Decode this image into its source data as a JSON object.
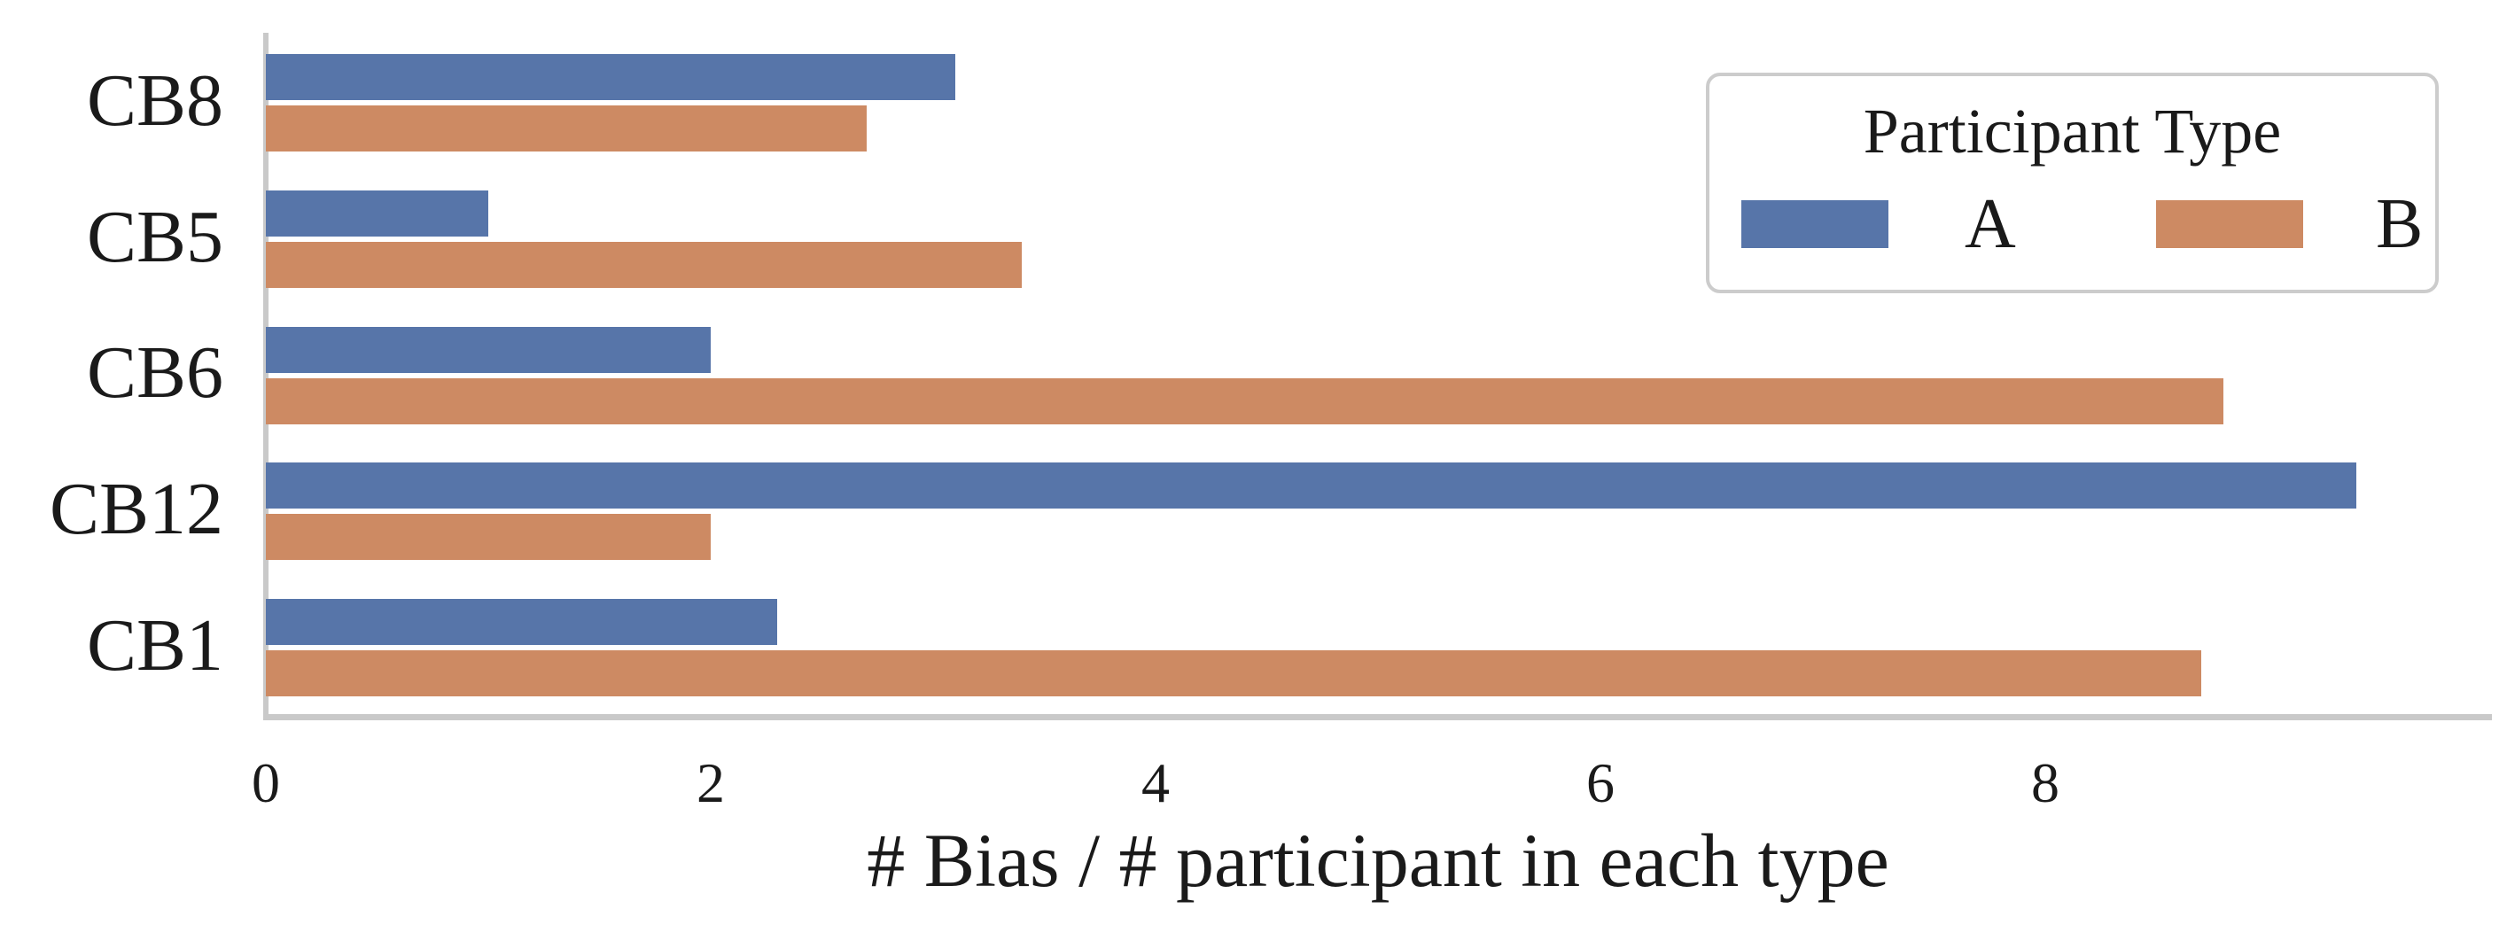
{
  "chart_data": {
    "type": "bar",
    "orientation": "horizontal",
    "title": "",
    "xlabel": "# Bias / # participant in each type",
    "ylabel": "",
    "categories": [
      "CB8",
      "CB5",
      "CB6",
      "CB12",
      "CB1"
    ],
    "series": [
      {
        "name": "A",
        "color": "#5775A9",
        "values": [
          3.1,
          1.0,
          2.0,
          9.4,
          2.3
        ]
      },
      {
        "name": "B",
        "color": "#CD8A63",
        "values": [
          2.7,
          3.4,
          8.8,
          2.0,
          8.7
        ]
      }
    ],
    "xlim": [
      0,
      10
    ],
    "x_ticks": [
      0,
      2,
      4,
      6,
      8
    ],
    "grid": false,
    "legend": {
      "title": "Participant Type",
      "position": "upper right"
    }
  },
  "colors": {
    "spine": "#c9c9c9",
    "text": "#1a1a1a",
    "legend_border": "#cccccc",
    "background": "#ffffff"
  }
}
